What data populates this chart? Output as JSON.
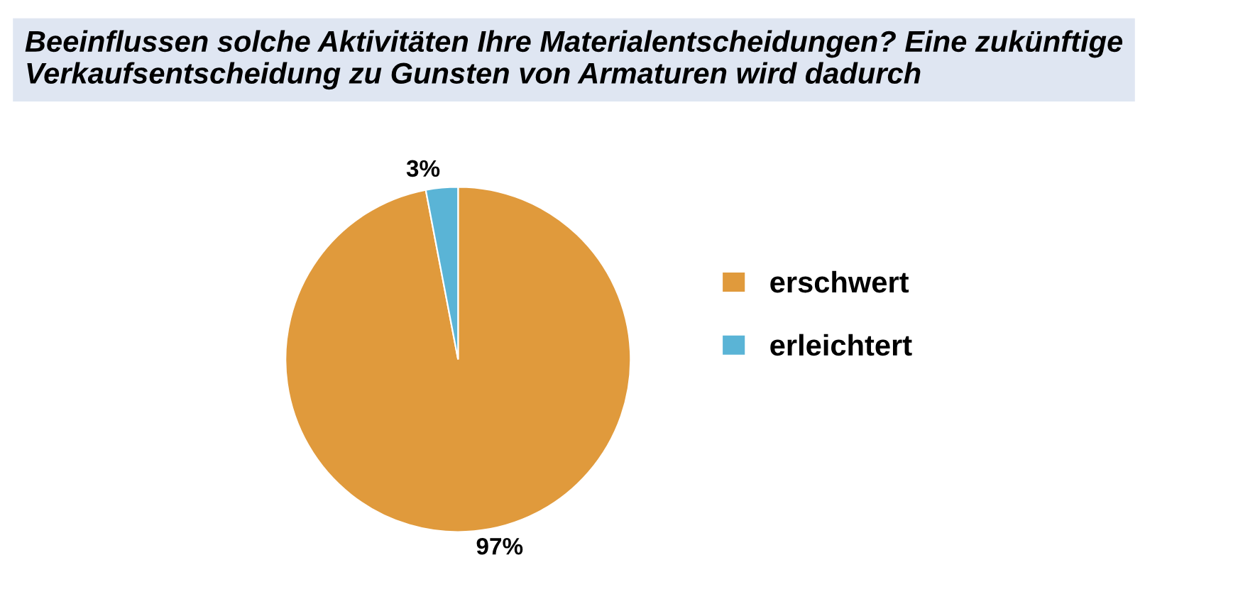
{
  "chart_data": {
    "type": "pie",
    "title": "Beeinflussen solche Aktivitäten Ihre Materialentscheidungen? Eine zukünftige Verkaufsentscheidung zu Gunsten von Armaturen wird dadurch",
    "categories": [
      "erschwert",
      "erleichtert"
    ],
    "values": [
      97,
      3
    ],
    "value_labels": [
      "97%",
      "3%"
    ],
    "colors": [
      "#e09a3c",
      "#5ab4d6"
    ],
    "legend": "right"
  }
}
